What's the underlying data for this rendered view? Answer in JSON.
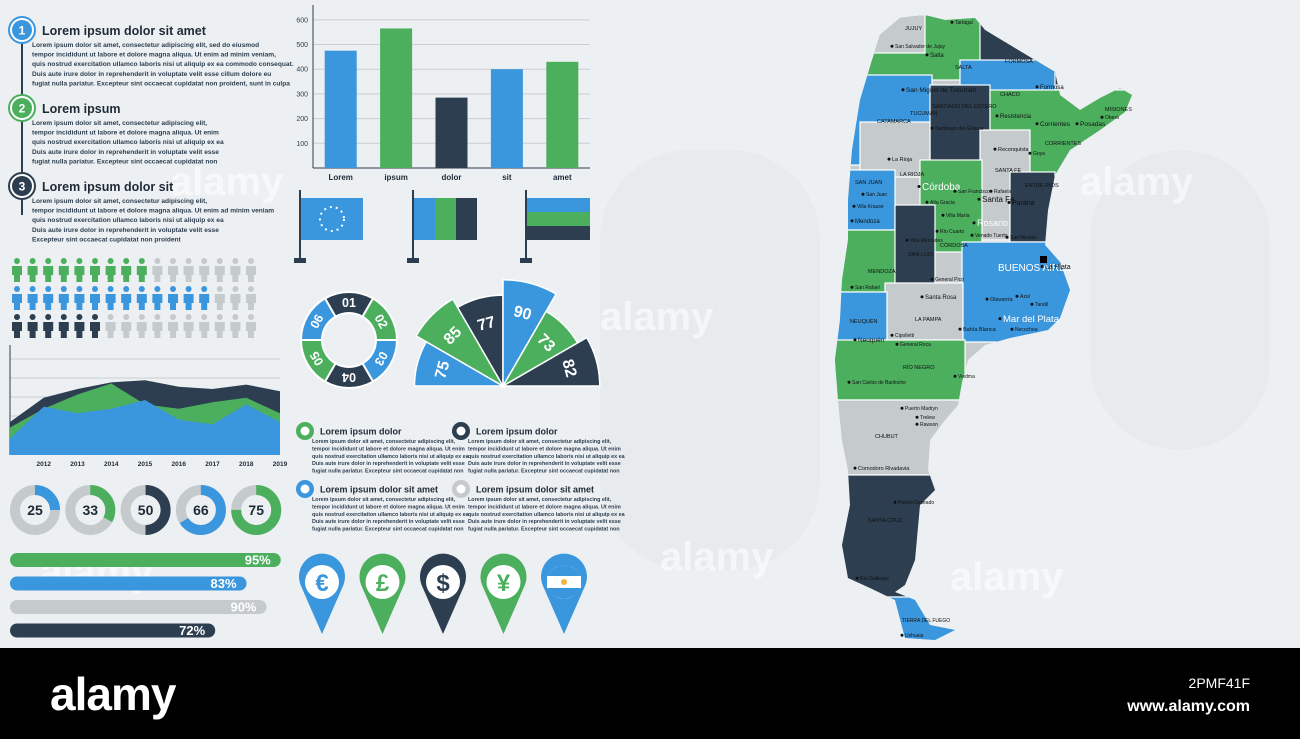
{
  "steps": [
    {
      "number": 1,
      "title": "Lorem ipsum dolor sit amet",
      "color": "#3a96dd",
      "text": [
        "Lorem ipsum dolor sit amet, consectetur adipiscing elit, sed do eiusmod",
        "tempor incididunt ut labore et dolore magna aliqua. Ut enim ad minim veniam,",
        "quis nostrud exercitation ullamco laboris nisi ut aliquip ex ea commodo consequat.",
        "Duis aute irure dolor in reprehenderit in voluptate velit esse cillum dolore eu",
        "fugiat nulla pariatur. Excepteur sint occaecat cupidatat non proident, sunt in culpa"
      ]
    },
    {
      "number": 2,
      "title": "Lorem ipsum",
      "color": "#4caf5e",
      "text": [
        "Lorem ipsum dolor sit amet, consectetur adipiscing elit,",
        "tempor incididunt ut labore et dolore magna aliqua. Ut enim",
        "quis nostrud exercitation ullamco laboris nisi ut aliquip ex ea",
        "Duis aute irure dolor in reprehenderit in voluptate velit esse",
        "fugiat nulla pariatur. Excepteur sint occaecat cupidatat non"
      ]
    },
    {
      "number": 3,
      "title": "Lorem ipsum dolor sit",
      "color": "#2c3e50",
      "text": [
        "Lorem ipsum dolor sit amet, consectetur adipiscing elit,",
        "tempor incididunt ut labore et dolore magna aliqua. Ut enim ad minim veniam",
        "quis nostrud exercitation ullamco laboris nisi ut aliquip ex ea",
        "Duis aute irure dolor in reprehenderit in voluptate velit esse",
        "Excepteur sint occaecat cupidatat non proident"
      ]
    }
  ],
  "chart_data": [
    {
      "type": "bar",
      "categories": [
        "Lorem",
        "ipsum",
        "dolor",
        "sit",
        "amet"
      ],
      "values": [
        475,
        565,
        285,
        400,
        430
      ],
      "colors": [
        "#3a96dd",
        "#4caf5e",
        "#2c3e50",
        "#3a96dd",
        "#4caf5e"
      ],
      "ylim": [
        0,
        660
      ],
      "yticks": [
        100,
        200,
        300,
        400,
        500,
        600
      ],
      "grid": true
    },
    {
      "type": "area",
      "x": [
        2011,
        2012,
        2013,
        2014,
        2015,
        2016,
        2017,
        2018,
        2019
      ],
      "xlim": [
        2011,
        2019
      ],
      "xticks": [
        2012,
        2013,
        2014,
        2015,
        2016,
        2017,
        2018,
        2019
      ],
      "ylim": [
        0,
        100
      ],
      "series": [
        {
          "color": "#2c3e50",
          "values": [
            30,
            52,
            60,
            66,
            68,
            62,
            60,
            64,
            58
          ]
        },
        {
          "color": "#4caf5e",
          "values": [
            25,
            42,
            55,
            65,
            46,
            42,
            48,
            52,
            38
          ]
        },
        {
          "color": "#3a96dd",
          "values": [
            15,
            44,
            38,
            42,
            50,
            32,
            28,
            46,
            30
          ]
        }
      ]
    },
    {
      "type": "donut",
      "values": [
        25,
        33,
        50,
        66,
        75
      ],
      "colors": [
        "#3a96dd",
        "#4caf5e",
        "#2c3e50",
        "#3a96dd",
        "#4caf5e"
      ]
    },
    {
      "type": "progress",
      "values": [
        95,
        83,
        90,
        72
      ],
      "value_labels": [
        "95%",
        "83%",
        "90%",
        "72%"
      ],
      "xlim": [
        0,
        100
      ],
      "colors": [
        "#4caf5e",
        "#3a96dd",
        "#c5cacd",
        "#2c3e50"
      ]
    },
    {
      "type": "ring",
      "labels": [
        "01",
        "02",
        "03",
        "04",
        "05",
        "06"
      ],
      "colors": [
        "#2c3e50",
        "#4caf5e",
        "#3a96dd",
        "#2c3e50",
        "#4caf5e",
        "#3a96dd"
      ]
    },
    {
      "type": "radial",
      "values": [
        75,
        85,
        77,
        90,
        73,
        82
      ],
      "colors": [
        "#3a96dd",
        "#4caf5e",
        "#2c3e50",
        "#3a96dd",
        "#4caf5e",
        "#2c3e50"
      ]
    },
    {
      "type": "pictograph",
      "total": 16,
      "values": [
        9,
        13,
        6
      ],
      "colors": [
        "#4caf5e",
        "#3a96dd",
        "#2c3e50"
      ]
    }
  ],
  "info_blocks": [
    {
      "title": "Lorem ipsum dolor",
      "color": "#4caf5e",
      "text": [
        "Lorem ipsum dolor sit amet, consectetur adipiscing elit,",
        "tempor incididunt ut labore et dolore magna aliqua. Ut enim",
        "quis nostrud exercitation ullamco laboris nisi ut aliquip ex ea",
        "Duis aute irure dolor in reprehenderit in voluptate velit esse",
        "fugiat nulla pariatur. Excepteur sint occaecat cupidatat non"
      ]
    },
    {
      "title": "Lorem ipsum dolor",
      "color": "#2c3e50",
      "text": [
        "Lorem ipsum dolor sit amet, consectetur adipiscing elit,",
        "tempor incididunt ut labore et dolore magna aliqua. Ut enim",
        "quis nostrud exercitation ullamco laboris nisi ut aliquip ex ea",
        "Duis aute irure dolor in reprehenderit in voluptate velit esse",
        "fugiat nulla pariatur. Excepteur sint occaecat cupidatat non"
      ]
    },
    {
      "title": "Lorem ipsum dolor sit amet",
      "color": "#3a96dd",
      "text": [
        "Lorem ipsum dolor sit amet, consectetur adipiscing elit,",
        "tempor incididunt ut labore et dolore magna aliqua. Ut enim",
        "quis nostrud exercitation ullamco laboris nisi ut aliquip ex ea",
        "Duis aute irure dolor in reprehenderit in voluptate velit esse",
        "fugiat nulla pariatur. Excepteur sint occaecat cupidatat non"
      ]
    },
    {
      "title": "Lorem ipsum dolor sit amet",
      "color": "#c5cacd",
      "text": [
        "Lorem ipsum dolor sit amet, consectetur adipiscing elit,",
        "tempor incididunt ut labore et dolore magna aliqua. Ut enim",
        "quis nostrud exercitation ullamco laboris nisi ut aliquip ex ea",
        "Duis aute irure dolor in reprehenderit in voluptate velit esse",
        "fugiat nulla pariatur. Excepteur sint occaecat cupidatat non"
      ]
    }
  ],
  "pins": [
    {
      "symbol": "€",
      "color": "#3a96dd"
    },
    {
      "symbol": "£",
      "color": "#4caf5e"
    },
    {
      "symbol": "$",
      "color": "#2c3e50"
    },
    {
      "symbol": "¥",
      "color": "#4caf5e"
    }
  ],
  "map": {
    "labels": [
      "JUJUY",
      "Tartagal",
      "San Salvador de Jujuy",
      "Salta",
      "SALTA",
      "FORMOSA",
      "Formosa",
      "CHACO",
      "San Miguel de Tucumán",
      "TUCUMÁN",
      "SANTIAGO DEL ESTERO",
      "CATAMARCA",
      "Resistencia",
      "Corrientes",
      "Posadas",
      "MISIONES",
      "Oberá",
      "Santiago del Estero",
      "Reconquista",
      "CORRIENTES",
      "Goya",
      "La Rioja",
      "LA RIOJA",
      "SANTA FE",
      "SAN JUAN",
      "Córdoba",
      "San Francisco",
      "Rafaela",
      "ENTRE RÍOS",
      "Paraná",
      "Alta Gracia",
      "Santa Fe",
      "San Juan",
      "Villa Krause",
      "Villa María",
      "Mendoza",
      "Rosario",
      "Río Cuarto",
      "Villa Mercedes",
      "CÓRDOBA",
      "Venado Tuerto",
      "San Nicolás",
      "SAN LUIS",
      "BUENOS AIRES",
      "La Plata",
      "MENDOZA",
      "San Rafael",
      "General Pico",
      "Azul",
      "Santa Rosa",
      "Olavarría",
      "Tandil",
      "LA PAMPA",
      "Mar del Plata",
      "NEUQUÉN",
      "Bahía Blanca",
      "Necochea",
      "Neuquén",
      "Cipolletti",
      "General Roca",
      "RÍO NEGRO",
      "Viedma",
      "San Carlos de Bariloche",
      "Puerto Madryn",
      "Trelew",
      "Rawson",
      "CHUBUT",
      "Comodoro Rivadavia",
      "Puerto Deseado",
      "SANTA CRUZ",
      "Río Gallegos",
      "TIERRA DEL FUEGO",
      "Ushuaia"
    ]
  },
  "footer": {
    "logo": "alamy",
    "image_id": "2PMF41F",
    "url": "www.alamy.com"
  }
}
